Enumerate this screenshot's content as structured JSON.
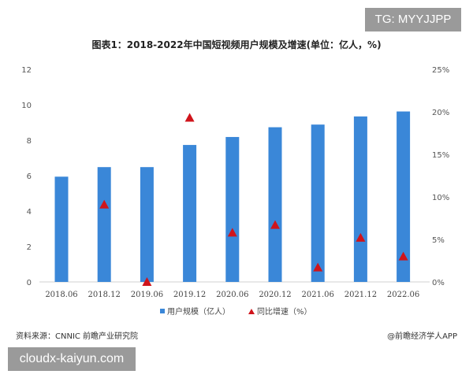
{
  "badge": "TG: MYYJJPP",
  "footer": {
    "source": "资料来源：CNNIC 前瞻产业研究院",
    "app": "@前瞻经济学人APP"
  },
  "watermark": "cloudx-kaiyun.com",
  "chart_data": {
    "type": "bar",
    "title": "图表1：2018-2022年中国短视频用户规模及增速(单位：亿人，%)",
    "categories": [
      "2018.06",
      "2018.12",
      "2019.06",
      "2019.12",
      "2020.06",
      "2020.12",
      "2021.06",
      "2021.12",
      "2022.06"
    ],
    "series": [
      {
        "name": "用户规模（亿人）",
        "type": "bar",
        "axis": "left",
        "color": "#3a87d8",
        "values": [
          5.94,
          6.48,
          6.48,
          7.73,
          8.18,
          8.73,
          8.88,
          9.34,
          9.62
        ]
      },
      {
        "name": "同比增速（%）",
        "type": "scatter",
        "marker": "triangle",
        "axis": "right",
        "color": "#d0141b",
        "values": [
          null,
          9.1,
          0,
          19.3,
          5.8,
          6.7,
          1.7,
          5.2,
          3.0
        ]
      }
    ],
    "left_axis": {
      "ylim": [
        0,
        12
      ],
      "ticks": [
        "0",
        "2",
        "4",
        "6",
        "8",
        "10",
        "12"
      ]
    },
    "right_axis": {
      "ylim": [
        0,
        25
      ],
      "ticks": [
        "0%",
        "5%",
        "10%",
        "15%",
        "20%",
        "25%"
      ]
    },
    "grid": false,
    "legend": "bottom"
  }
}
